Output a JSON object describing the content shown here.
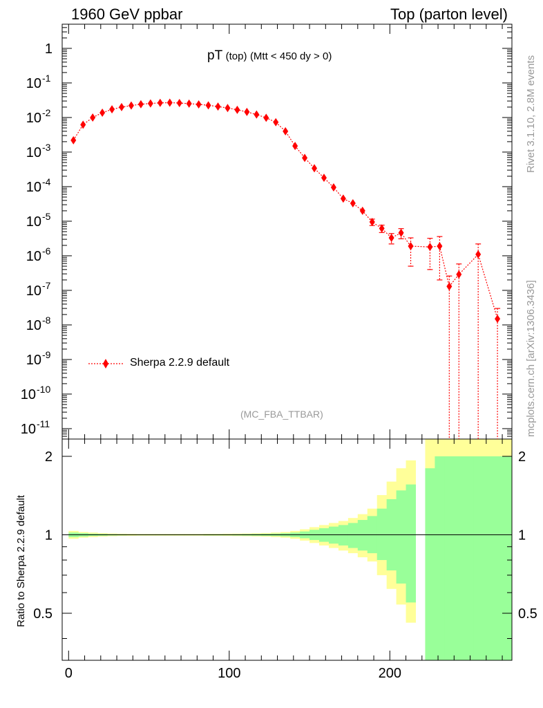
{
  "header": {
    "left": "1960 GeV ppbar",
    "right": "Top (parton level)"
  },
  "side_labels": {
    "rivet": "Rivet 3.1.10,  2.8M events",
    "mcplots": "mcplots.cern.ch [arXiv:1306.3436]"
  },
  "chart_data": [
    {
      "type": "scatter",
      "title_main": "pT",
      "title_sub": "(top)",
      "title_cut": "(Mtt < 450 dy > 0)",
      "watermark": "(MC_FBA_TTBAR)",
      "y_scale": "log",
      "ylim": [
        5e-12,
        5
      ],
      "xlim": [
        -4,
        276
      ],
      "y_ticks": [
        {
          "v": 1,
          "base": "1",
          "exp": ""
        },
        {
          "v": 0.1,
          "base": "10",
          "exp": "-1"
        },
        {
          "v": 0.01,
          "base": "10",
          "exp": "-2"
        },
        {
          "v": 0.001,
          "base": "10",
          "exp": "-3"
        },
        {
          "v": 0.0001,
          "base": "10",
          "exp": "-4"
        },
        {
          "v": 1e-05,
          "base": "10",
          "exp": "-5"
        },
        {
          "v": 1e-06,
          "base": "10",
          "exp": "-6"
        },
        {
          "v": 1e-07,
          "base": "10",
          "exp": "-7"
        },
        {
          "v": 1e-08,
          "base": "10",
          "exp": "-8"
        },
        {
          "v": 1e-09,
          "base": "10",
          "exp": "-9"
        },
        {
          "v": 1e-10,
          "base": "10",
          "exp": "-10"
        },
        {
          "v": 1e-11,
          "base": "10",
          "exp": "-11"
        }
      ],
      "legend": {
        "label": "Sherpa 2.2.9 default",
        "placement": "bottom-left"
      },
      "series": [
        {
          "name": "Sherpa 2.2.9 default",
          "color": "#ff0000",
          "x": [
            3,
            9,
            15,
            21,
            27,
            33,
            39,
            45,
            51,
            57,
            63,
            69,
            75,
            81,
            87,
            93,
            99,
            105,
            111,
            117,
            123,
            129,
            135,
            141,
            147,
            153,
            159,
            165,
            171,
            177,
            183,
            189,
            195,
            201,
            207,
            213,
            225,
            231,
            237,
            243,
            255,
            267
          ],
          "y": [
            0.0022,
            0.0062,
            0.01,
            0.0138,
            0.0172,
            0.02,
            0.0222,
            0.0242,
            0.0255,
            0.0265,
            0.0268,
            0.0262,
            0.0252,
            0.024,
            0.0225,
            0.0207,
            0.0188,
            0.0167,
            0.0145,
            0.0122,
            0.0098,
            0.0073,
            0.004,
            0.0015,
            0.00068,
            0.00034,
            0.00018,
            9.5e-05,
            4.5e-05,
            3.3e-05,
            2e-05,
            9.5e-06,
            6.2e-06,
            3.3e-06,
            4.6e-06,
            1.9e-06,
            1.8e-06,
            1.9e-06,
            1.3e-07,
            2.9e-07,
            1.1e-06,
            1.5e-08
          ],
          "yerr_low": [
            0,
            0,
            0,
            0,
            0,
            0,
            0,
            0,
            0,
            0,
            0,
            0,
            0,
            0,
            0,
            0,
            0,
            0,
            0,
            0,
            0,
            0,
            0,
            0,
            0,
            0,
            0,
            0,
            0,
            0,
            0,
            2e-06,
            1.5e-06,
            1.1e-06,
            1.5e-06,
            1.4e-06,
            1.4e-06,
            1.7e-06,
            1.3e-07,
            2.9e-07,
            1.1e-06,
            1.5e-08
          ],
          "yerr_high": [
            0,
            0,
            0,
            0,
            0,
            0,
            0,
            0,
            0,
            0,
            0,
            0,
            0,
            0,
            0,
            0,
            0,
            0,
            0,
            0,
            0,
            0,
            0,
            0,
            0,
            0,
            0,
            0,
            0,
            0,
            0,
            2e-06,
            1.5e-06,
            1.1e-06,
            1.5e-06,
            1.4e-06,
            1.4e-06,
            1.7e-06,
            1.3e-07,
            2.9e-07,
            1.1e-06,
            1.5e-08
          ]
        }
      ]
    },
    {
      "type": "area",
      "ylabel": "Ratio to Sherpa 2.2.9 default",
      "xlim": [
        -4,
        276
      ],
      "ylim": [
        0.33,
        2.33
      ],
      "x_ticks": [
        0,
        100,
        200
      ],
      "y_ticks": [
        0.5,
        1,
        2
      ],
      "reference_line": 1,
      "bins_x_low": [
        0,
        6,
        12,
        18,
        24,
        30,
        36,
        42,
        48,
        54,
        60,
        66,
        72,
        78,
        84,
        90,
        96,
        102,
        108,
        114,
        120,
        126,
        132,
        138,
        144,
        150,
        156,
        162,
        168,
        174,
        180,
        186,
        192,
        198,
        204,
        210,
        216,
        222,
        228,
        234,
        240,
        246,
        252,
        258,
        264,
        270
      ],
      "bins_x_high": [
        6,
        12,
        18,
        24,
        30,
        36,
        42,
        48,
        54,
        60,
        66,
        72,
        78,
        84,
        90,
        96,
        102,
        108,
        114,
        120,
        126,
        132,
        138,
        144,
        150,
        156,
        162,
        168,
        174,
        180,
        186,
        192,
        198,
        204,
        210,
        216,
        222,
        228,
        234,
        240,
        246,
        252,
        258,
        264,
        270,
        276
      ],
      "bands": [
        {
          "name": "yellow band",
          "color": "#ffff99",
          "low": [
            0.965,
            0.975,
            0.98,
            0.985,
            0.988,
            0.99,
            0.991,
            0.992,
            0.992,
            0.992,
            0.992,
            0.992,
            0.992,
            0.992,
            0.991,
            0.991,
            0.99,
            0.989,
            0.988,
            0.986,
            0.984,
            0.98,
            0.975,
            0.965,
            0.95,
            0.93,
            0.91,
            0.89,
            0.87,
            0.85,
            0.82,
            0.79,
            0.7,
            0.62,
            0.54,
            0.46,
            0.33,
            0.33,
            0.33,
            0.33,
            0.33,
            0.33,
            0.33,
            0.33,
            0.33,
            0.33
          ],
          "high": [
            1.035,
            1.025,
            1.02,
            1.015,
            1.012,
            1.01,
            1.009,
            1.008,
            1.008,
            1.008,
            1.008,
            1.008,
            1.008,
            1.008,
            1.009,
            1.009,
            1.01,
            1.011,
            1.012,
            1.014,
            1.016,
            1.02,
            1.025,
            1.035,
            1.05,
            1.07,
            1.09,
            1.11,
            1.13,
            1.16,
            1.2,
            1.26,
            1.42,
            1.6,
            1.8,
            1.93,
            2.33,
            2.33,
            2.33,
            2.33,
            2.33,
            2.33,
            2.33,
            2.33,
            2.33,
            2.33
          ]
        },
        {
          "name": "green band",
          "color": "#99ff99",
          "low": [
            0.98,
            0.985,
            0.99,
            0.992,
            0.994,
            0.995,
            0.996,
            0.996,
            0.996,
            0.996,
            0.996,
            0.996,
            0.996,
            0.996,
            0.995,
            0.995,
            0.995,
            0.994,
            0.993,
            0.992,
            0.991,
            0.989,
            0.986,
            0.98,
            0.97,
            0.955,
            0.94,
            0.925,
            0.91,
            0.89,
            0.87,
            0.85,
            0.8,
            0.73,
            0.65,
            0.55,
            0.33,
            0.33,
            0.33,
            0.33,
            0.33,
            0.33,
            0.33,
            0.33,
            0.33,
            0.33
          ],
          "high": [
            1.02,
            1.015,
            1.01,
            1.008,
            1.006,
            1.005,
            1.004,
            1.004,
            1.004,
            1.004,
            1.004,
            1.004,
            1.004,
            1.004,
            1.005,
            1.005,
            1.005,
            1.006,
            1.007,
            1.008,
            1.009,
            1.011,
            1.014,
            1.02,
            1.03,
            1.045,
            1.06,
            1.075,
            1.09,
            1.11,
            1.14,
            1.18,
            1.26,
            1.37,
            1.48,
            1.56,
            1.82,
            1.8,
            2.0,
            2.0,
            2.0,
            2.0,
            2.0,
            2.0,
            2.0,
            2.0
          ]
        }
      ],
      "gaps_x": [
        [
          216,
          222
        ],
        [
          249,
          255
        ],
        [
          261,
          264
        ]
      ]
    }
  ]
}
